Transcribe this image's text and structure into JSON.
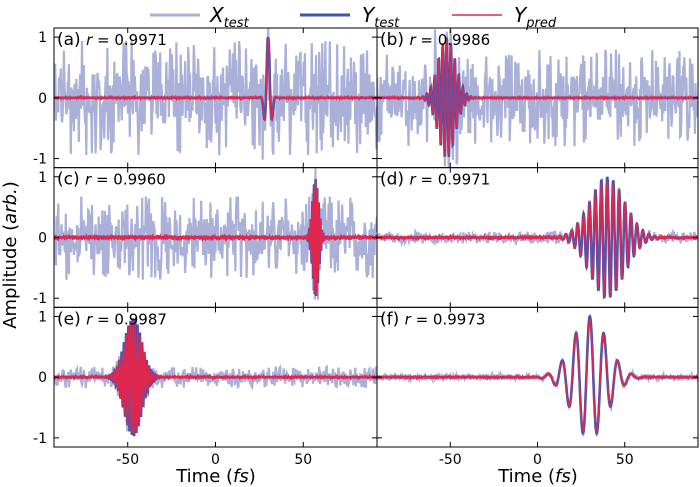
{
  "legend": [
    {
      "base": "X",
      "sub": "test",
      "color": "#aab0d8"
    },
    {
      "base": "Y",
      "sub": "test",
      "color": "#3f55b0"
    },
    {
      "base": "Y",
      "sub": "pred",
      "color": "#e0284f"
    }
  ],
  "ylabel": {
    "main": "Amplitude (",
    "italic": "arb.",
    "close": ")"
  },
  "xlabel": {
    "main": "Time (",
    "italic": "fs",
    "close": ")"
  },
  "chart_data": {
    "type": "line",
    "xlim": [
      -92,
      92
    ],
    "ylim": [
      -1.15,
      1.15
    ],
    "xticks": [
      -50,
      0,
      50
    ],
    "yticks": [
      -1,
      0,
      1
    ],
    "series_names": [
      "X_test",
      "Y_test",
      "Y_pred"
    ],
    "panels": [
      {
        "tag": "(a)",
        "r": "0.9971",
        "pulse": {
          "center": 30,
          "width": 2.2,
          "period": 5,
          "amp": 1.0
        },
        "noise": 0.95,
        "pred_noise": 0.02
      },
      {
        "tag": "(b)",
        "r": "0.9986",
        "pulse": {
          "center": -52,
          "width": 7,
          "period": 2.3,
          "amp": 1.0
        },
        "noise": 0.8,
        "pred_noise": 0.015
      },
      {
        "tag": "(c)",
        "r": "0.9960",
        "pulse": {
          "center": 57,
          "width": 2.5,
          "period": 0.9,
          "amp": 1.0
        },
        "noise": 0.7,
        "pred_noise": 0.04
      },
      {
        "tag": "(d)",
        "r": "0.9971",
        "pulse": {
          "center": 40,
          "width": 14,
          "period": 3.4,
          "amp": 1.0
        },
        "noise": 0.1,
        "pred_noise": 0.03
      },
      {
        "tag": "(e)",
        "r": "0.9987",
        "pulse": {
          "center": -47,
          "width": 7,
          "period": 1.3,
          "amp": 1.0
        },
        "noise": 0.18,
        "pred_noise": 0.025
      },
      {
        "tag": "(f)",
        "r": "0.9973",
        "pulse": {
          "center": 30,
          "width": 14,
          "period": 8,
          "amp": 1.0
        },
        "noise": 0.05,
        "pred_noise": 0.02
      }
    ]
  }
}
